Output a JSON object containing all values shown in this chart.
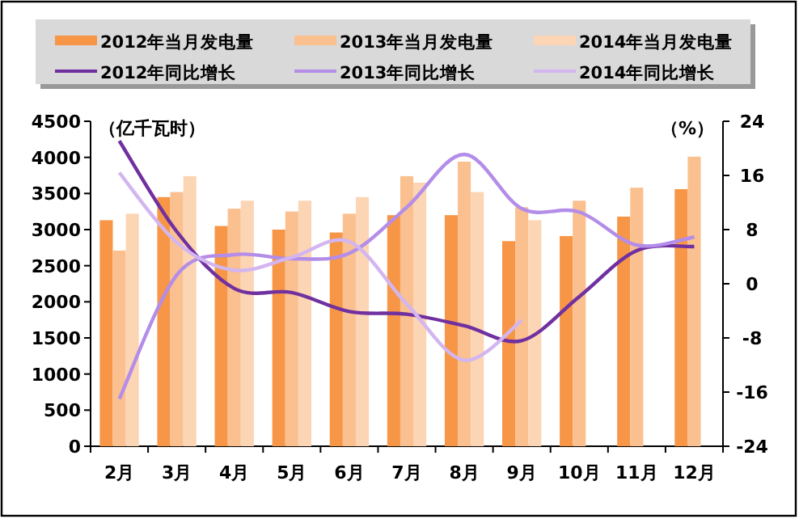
{
  "chart_data": {
    "type": "bar",
    "ylabel": "（亿千瓦时）",
    "y2label": "（%）",
    "legend": "top",
    "categories": [
      "2月",
      "3月",
      "4月",
      "5月",
      "6月",
      "7月",
      "8月",
      "9月",
      "10月",
      "11月",
      "12月"
    ],
    "ylim": [
      0,
      4500
    ],
    "yticks": [
      0,
      500,
      1000,
      1500,
      2000,
      2500,
      3000,
      3500,
      4000,
      4500
    ],
    "y2lim": [
      -24,
      24
    ],
    "y2ticks": [
      -24,
      -16,
      -8,
      0,
      8,
      16,
      24
    ],
    "series": [
      {
        "name": "2012年当月发电量",
        "color": "#f79646",
        "values": [
          3130,
          3450,
          3050,
          3000,
          2960,
          3200,
          3200,
          2840,
          2910,
          3180,
          3560
        ]
      },
      {
        "name": "2013年当月发电量",
        "color": "#fac090",
        "values": [
          2710,
          3520,
          3290,
          3250,
          3220,
          3740,
          3940,
          3310,
          3400,
          3580,
          4010
        ]
      },
      {
        "name": "2014年当月发电量",
        "color": "#fcd5b5",
        "values": [
          3220,
          3740,
          3400,
          3400,
          3450,
          3650,
          3520,
          3130,
          null,
          null,
          null
        ]
      },
      {
        "name": "2012年同比增长",
        "type": "line",
        "axis": "y2",
        "color": "#7030a0",
        "values": [
          21.1,
          7.7,
          -0.7,
          -1.3,
          -4.1,
          -4.5,
          -6.2,
          -8.4,
          -1.9,
          4.9,
          5.5
        ]
      },
      {
        "name": "2013年同比增长",
        "type": "line",
        "axis": "y2",
        "color": "#b38de8",
        "values": [
          -17,
          1.3,
          4.3,
          3.7,
          4.5,
          11.3,
          19.1,
          11.1,
          10.6,
          5.7,
          6.9
        ]
      },
      {
        "name": "2014年同比增长",
        "type": "line",
        "axis": "y2",
        "color": "#d3b5f0",
        "values": [
          16.4,
          6.1,
          2.0,
          3.9,
          6.2,
          -3,
          -11.3,
          -5.4,
          null,
          null,
          null
        ]
      }
    ]
  }
}
